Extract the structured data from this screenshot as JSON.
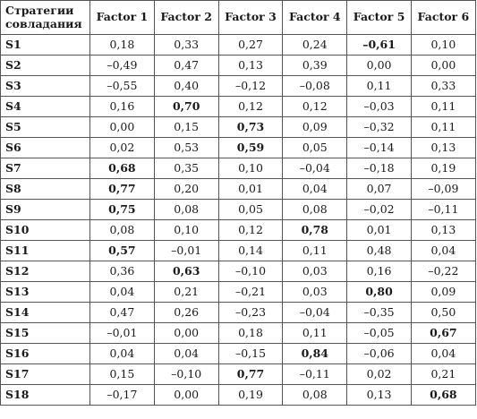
{
  "table": {
    "header": {
      "strategy_label_line1": "Стратегии",
      "strategy_label_line2": "совладания",
      "factors": [
        "Factor 1",
        "Factor 2",
        "Factor 3",
        "Factor 4",
        "Factor 5",
        "Factor 6"
      ]
    },
    "rows": [
      {
        "label": "S1",
        "values": [
          "0,18",
          "0,33",
          "0,27",
          "0,24",
          "–0,61",
          "0,10"
        ],
        "bold": [
          false,
          false,
          false,
          false,
          true,
          false
        ]
      },
      {
        "label": "S2",
        "values": [
          "–0,49",
          "0,47",
          "0,13",
          "0,39",
          "0,00",
          "0,00"
        ],
        "bold": [
          false,
          false,
          false,
          false,
          false,
          false
        ]
      },
      {
        "label": "S3",
        "values": [
          "–0,55",
          "0,40",
          "–0,12",
          "–0,08",
          "0,11",
          "0,33"
        ],
        "bold": [
          false,
          false,
          false,
          false,
          false,
          false
        ]
      },
      {
        "label": "S4",
        "values": [
          "0,16",
          "0,70",
          "0,12",
          "0,12",
          "–0,03",
          "0,11"
        ],
        "bold": [
          false,
          true,
          false,
          false,
          false,
          false
        ]
      },
      {
        "label": "S5",
        "values": [
          "0,00",
          "0,15",
          "0,73",
          "0,09",
          "–0,32",
          "0,11"
        ],
        "bold": [
          false,
          false,
          true,
          false,
          false,
          false
        ]
      },
      {
        "label": "S6",
        "values": [
          "0,02",
          "0,53",
          "0,59",
          "0,05",
          "–0,14",
          "0,13"
        ],
        "bold": [
          false,
          false,
          true,
          false,
          false,
          false
        ]
      },
      {
        "label": "S7",
        "values": [
          "0,68",
          "0,35",
          "0,10",
          "–0,04",
          "–0,18",
          "0,19"
        ],
        "bold": [
          true,
          false,
          false,
          false,
          false,
          false
        ]
      },
      {
        "label": "S8",
        "values": [
          "0,77",
          "0,20",
          "0,01",
          "0,04",
          "0,07",
          "–0,09"
        ],
        "bold": [
          true,
          false,
          false,
          false,
          false,
          false
        ]
      },
      {
        "label": "S9",
        "values": [
          "0,75",
          "0,08",
          "0,05",
          "0,08",
          "–0,02",
          "–0,11"
        ],
        "bold": [
          true,
          false,
          false,
          false,
          false,
          false
        ]
      },
      {
        "label": "S10",
        "values": [
          "0,08",
          "0,10",
          "0,12",
          "0,78",
          "0,01",
          "0,13"
        ],
        "bold": [
          false,
          false,
          false,
          true,
          false,
          false
        ]
      },
      {
        "label": "S11",
        "values": [
          "0,57",
          "–0,01",
          "0,14",
          "0,11",
          "0,48",
          "0,04"
        ],
        "bold": [
          true,
          false,
          false,
          false,
          false,
          false
        ]
      },
      {
        "label": "S12",
        "values": [
          "0,36",
          "0,63",
          "–0,10",
          "0,03",
          "0,16",
          "–0,22"
        ],
        "bold": [
          false,
          true,
          false,
          false,
          false,
          false
        ]
      },
      {
        "label": "S13",
        "values": [
          "0,04",
          "0,21",
          "–0,21",
          "0,03",
          "0,80",
          "0,09"
        ],
        "bold": [
          false,
          false,
          false,
          false,
          true,
          false
        ]
      },
      {
        "label": "S14",
        "values": [
          "0,47",
          "0,26",
          "–0,23",
          "–0,04",
          "–0,35",
          "0,50"
        ],
        "bold": [
          false,
          false,
          false,
          false,
          false,
          false
        ]
      },
      {
        "label": "S15",
        "values": [
          "–0,01",
          "0,00",
          "0,18",
          "0,11",
          "–0,05",
          "0,67"
        ],
        "bold": [
          false,
          false,
          false,
          false,
          false,
          true
        ]
      },
      {
        "label": "S16",
        "values": [
          "0,04",
          "0,04",
          "–0,15",
          "0,84",
          "–0,06",
          "0,04"
        ],
        "bold": [
          false,
          false,
          false,
          true,
          false,
          false
        ]
      },
      {
        "label": "S17",
        "values": [
          "0,15",
          "–0,10",
          "0,77",
          "–0,11",
          "0,02",
          "0,21"
        ],
        "bold": [
          false,
          false,
          true,
          false,
          false,
          false
        ]
      },
      {
        "label": "S18",
        "values": [
          "–0,17",
          "0,00",
          "0,19",
          "0,08",
          "0,13",
          "0,68"
        ],
        "bold": [
          false,
          false,
          false,
          false,
          false,
          true
        ]
      }
    ]
  }
}
